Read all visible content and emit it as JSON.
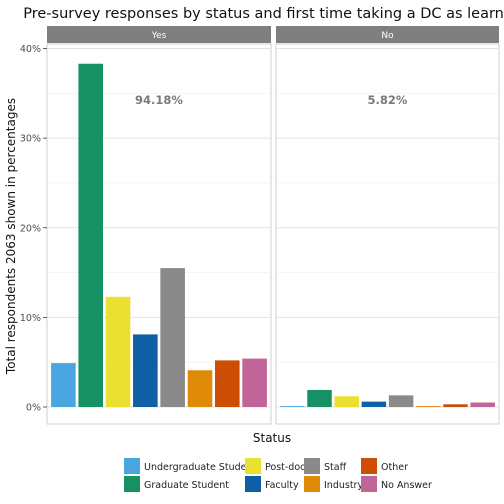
{
  "chart_data": {
    "type": "bar",
    "title": "Pre-survey responses by status and first time taking a DC as learner",
    "xlabel": "Status",
    "ylabel": "Total respondents 2063 shown in percentages",
    "ylim": [
      0,
      0.4
    ],
    "yticks": [
      {
        "value": 0.0,
        "label": "0%"
      },
      {
        "value": 0.1,
        "label": "10%"
      },
      {
        "value": 0.2,
        "label": "20%"
      },
      {
        "value": 0.3,
        "label": "30%"
      },
      {
        "value": 0.4,
        "label": "40%"
      }
    ],
    "grid": true,
    "legend_position": "bottom",
    "categories": [
      "Undergraduate Student",
      "Graduate Student",
      "Post-doc",
      "Faculty",
      "Industry",
      "Staff",
      "Other",
      "No Answer"
    ],
    "colors": {
      "Undergraduate Student": "#4aa6e0",
      "Graduate Student": "#159164",
      "Post-doc": "#ebe032",
      "Faculty": "#0e5fa3",
      "Industry": "#e08b08",
      "Staff": "#8a8a8a",
      "Other": "#cc4e04",
      "No Answer": "#c16497"
    },
    "legend": [
      [
        "Undergraduate Student",
        "Graduate Student"
      ],
      [
        "Post-doc",
        "Faculty"
      ],
      [
        "Staff",
        "Industry"
      ],
      [
        "Other",
        "No Answer"
      ]
    ],
    "bar_order": [
      "Undergraduate Student",
      "Graduate Student",
      "Post-doc",
      "Faculty",
      "Staff",
      "Industry",
      "Other",
      "No Answer"
    ],
    "panels": [
      {
        "label": "Yes",
        "annotation": "94.18%",
        "values": {
          "Undergraduate Student": 0.049,
          "Graduate Student": 0.383,
          "Post-doc": 0.123,
          "Faculty": 0.081,
          "Staff": 0.155,
          "Industry": 0.041,
          "Other": 0.052,
          "No Answer": 0.054
        }
      },
      {
        "label": "No",
        "annotation": "5.82%",
        "values": {
          "Undergraduate Student": 0.001,
          "Graduate Student": 0.019,
          "Post-doc": 0.012,
          "Faculty": 0.006,
          "Staff": 0.013,
          "Industry": 0.001,
          "Other": 0.003,
          "No Answer": 0.005
        }
      }
    ]
  }
}
